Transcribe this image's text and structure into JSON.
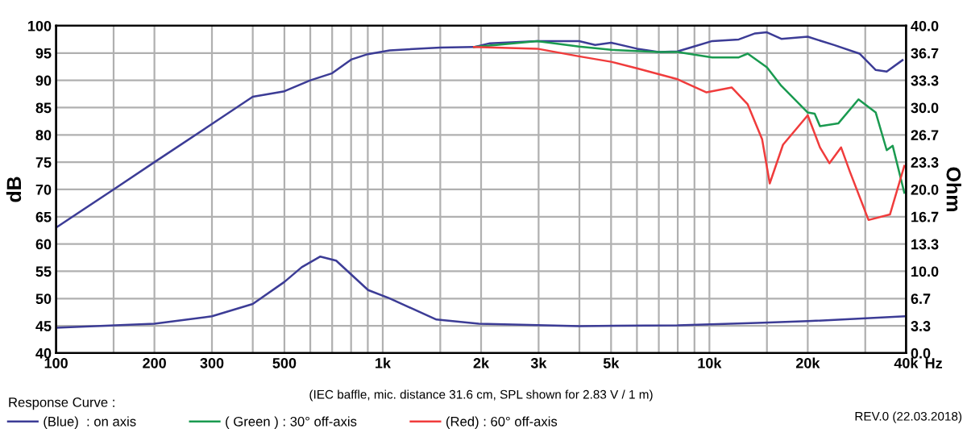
{
  "chart_data": {
    "type": "line",
    "ylabel": "dB",
    "y2label": "Ohm",
    "legend_title": "Response Curve :",
    "annotations": [
      "(IEC baffle, mic. distance 31.6 cm, SPL shown for 2.83 V / 1 m)",
      "REV.0 (22.03.2018)"
    ],
    "log": "x",
    "grid": true,
    "legend": "bottom",
    "marker": "none",
    "line_style": "solid",
    "xlim": [
      100,
      40000
    ],
    "xticks": [
      100,
      {
        "value": 150,
        "label": null
      },
      200,
      300,
      {
        "value": 400,
        "label": null
      },
      500,
      {
        "value": 600,
        "label": null
      },
      {
        "value": 700,
        "label": null
      },
      {
        "value": 800,
        "label": null
      },
      {
        "value": 900,
        "label": null
      },
      {
        "value": 1000,
        "label": "1k"
      },
      {
        "value": 1500,
        "label": null
      },
      {
        "value": 2000,
        "label": "2k"
      },
      {
        "value": 3000,
        "label": "3k"
      },
      {
        "value": 4000,
        "label": null
      },
      {
        "value": 5000,
        "label": "5k"
      },
      {
        "value": 6000,
        "label": null
      },
      {
        "value": 7000,
        "label": null
      },
      {
        "value": 8000,
        "label": null
      },
      {
        "value": 9000,
        "label": null
      },
      {
        "value": 10000,
        "label": "10k"
      },
      {
        "value": 15000,
        "label": null
      },
      {
        "value": 20000,
        "label": "20k"
      },
      {
        "value": 30000,
        "label": null
      },
      {
        "value": 40000,
        "label": "40k"
      }
    ],
    "xlabel": "Hz",
    "ylim": [
      40,
      100
    ],
    "yticks": [
      40,
      45,
      50,
      55,
      60,
      65,
      70,
      75,
      80,
      85,
      90,
      95,
      100
    ],
    "y2lim": [
      0,
      40
    ],
    "y2ticks": [
      {
        "value": 0,
        "label": "0.0"
      },
      {
        "value": 3.33,
        "label": "3.3"
      },
      {
        "value": 6.67,
        "label": "6.7"
      },
      {
        "value": 10,
        "label": "10.0"
      },
      {
        "value": 13.33,
        "label": "13.3"
      },
      {
        "value": 16.67,
        "label": "16.7"
      },
      {
        "value": 20,
        "label": "20.0"
      },
      {
        "value": 23.33,
        "label": "23.3"
      },
      {
        "value": 26.67,
        "label": "26.7"
      },
      {
        "value": 30,
        "label": "30.0"
      },
      {
        "value": 33.33,
        "label": "33.3"
      },
      {
        "value": 36.67,
        "label": "36.7"
      },
      {
        "value": 40,
        "label": "40.0"
      }
    ],
    "series": [
      {
        "name": "(Blue)  : on axis",
        "color": "#3c3c96",
        "x": [
          100,
          150,
          200,
          300,
          400,
          500,
          600,
          700,
          800,
          900,
          1050,
          1500,
          1902,
          2128,
          2970,
          3990,
          4470,
          5000,
          6000,
          6990,
          7990,
          8960,
          10200,
          12300,
          13800,
          15000,
          16600,
          20000,
          24000,
          28800,
          32300,
          34900,
          39000
        ],
        "values": [
          63,
          70,
          75,
          82,
          87,
          88,
          90,
          91.3,
          93.8,
          94.8,
          95.5,
          96,
          96.1,
          96.8,
          97.2,
          97.2,
          96.5,
          96.9,
          95.8,
          95.2,
          95.3,
          96.2,
          97.2,
          97.5,
          98.6,
          98.8,
          97.6,
          98,
          96.5,
          94.9,
          91.9,
          91.6,
          93.7
        ]
      },
      {
        "name": "( Green ) : 30° off-axis",
        "color": "#1a9a50",
        "x": [
          1902,
          2970,
          3990,
          5000,
          6990,
          7990,
          10200,
          12300,
          13100,
          15000,
          16600,
          20000,
          21000,
          21800,
          24800,
          28600,
          32300,
          34900,
          36400,
          39500
        ],
        "values": [
          96.1,
          97.2,
          96.2,
          95.6,
          95.2,
          95.2,
          94.2,
          94.2,
          94.9,
          92.4,
          89,
          84.1,
          83.9,
          81.6,
          82.1,
          86.5,
          84.1,
          77.2,
          78,
          69.4
        ]
      },
      {
        "name": "(Red) : 60° off-axis",
        "color": "#f03c3c",
        "x": [
          1902,
          2970,
          3990,
          5000,
          6000,
          7990,
          9800,
          11700,
          13100,
          14500,
          15300,
          16800,
          20000,
          21800,
          23300,
          25300,
          26900,
          30700,
          35700,
          39500
        ],
        "values": [
          96.1,
          95.8,
          94.4,
          93.4,
          92.2,
          90.2,
          87.8,
          88.7,
          85.6,
          79.2,
          71.1,
          78.2,
          83.6,
          77.7,
          74.8,
          77.7,
          73.3,
          64.4,
          65.4,
          74.3
        ]
      },
      {
        "color": "#3c3c96",
        "axis": "y2",
        "x": [
          100,
          200,
          300,
          400,
          500,
          565,
          644,
          720,
          902,
          1047,
          1460,
          1970,
          4000,
          8000,
          14000,
          20000,
          39500
        ],
        "values": [
          3.1,
          3.6,
          4.5,
          6,
          8.7,
          10.5,
          11.8,
          11.3,
          7.7,
          6.7,
          4.1,
          3.6,
          3.3,
          3.4,
          3.7,
          3.9,
          4.5
        ]
      }
    ]
  }
}
